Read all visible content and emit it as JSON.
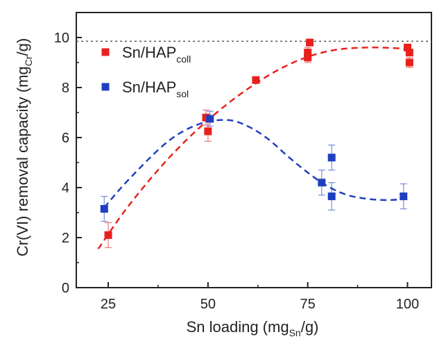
{
  "chart_data": {
    "type": "scatter",
    "xlabel": {
      "main": "Sn loading (mg",
      "sub": "Sn",
      "tail": "/g)"
    },
    "ylabel": {
      "main": "Cr(VI) removal capacity  (mg",
      "sub": "Cr",
      "tail": "/g)"
    },
    "xlim": [
      17,
      106
    ],
    "ylim": [
      0,
      11
    ],
    "xticks": [
      25,
      50,
      75,
      100
    ],
    "yticks": [
      0,
      2,
      4,
      6,
      8,
      10
    ],
    "reference_line": {
      "y": 9.85,
      "style": "dotted",
      "color": "#555555"
    },
    "series": [
      {
        "name": {
          "main": "Sn/HAP",
          "sub": "coll"
        },
        "color": "#e8211e",
        "points": [
          {
            "x": 25,
            "y": 2.1,
            "err": 0.5
          },
          {
            "x": 49.5,
            "y": 6.8,
            "err": 0.3
          },
          {
            "x": 50,
            "y": 6.25,
            "err": 0.4
          },
          {
            "x": 62,
            "y": 8.3,
            "err": 0.0
          },
          {
            "x": 75,
            "y": 9.2,
            "err": 0.2
          },
          {
            "x": 75,
            "y": 9.4,
            "err": 0.2
          },
          {
            "x": 75.5,
            "y": 9.8,
            "err": 0.0
          },
          {
            "x": 100,
            "y": 9.6,
            "err": 0.0
          },
          {
            "x": 100.5,
            "y": 9.4,
            "err": 0.0
          },
          {
            "x": 100.5,
            "y": 9.0,
            "err": 0.2
          }
        ],
        "fit": [
          [
            22.5,
            1.55
          ],
          [
            30,
            3.25
          ],
          [
            40,
            5.15
          ],
          [
            50,
            6.7
          ],
          [
            60,
            7.95
          ],
          [
            70,
            8.9
          ],
          [
            80,
            9.45
          ],
          [
            90,
            9.6
          ],
          [
            100,
            9.55
          ]
        ]
      },
      {
        "name": {
          "main": "Sn/HAP",
          "sub": "sol"
        },
        "color": "#1f3fbf",
        "points": [
          {
            "x": 24,
            "y": 3.15,
            "err": 0.5
          },
          {
            "x": 50.5,
            "y": 6.75,
            "err": 0.3
          },
          {
            "x": 78.5,
            "y": 4.2,
            "err": 0.5
          },
          {
            "x": 81,
            "y": 3.65,
            "err": 0.55
          },
          {
            "x": 81,
            "y": 5.2,
            "err": 0.5
          },
          {
            "x": 99,
            "y": 3.65,
            "err": 0.5
          }
        ],
        "fit": [
          [
            24,
            3.2
          ],
          [
            30,
            4.3
          ],
          [
            40,
            5.85
          ],
          [
            48,
            6.55
          ],
          [
            55,
            6.7
          ],
          [
            60,
            6.45
          ],
          [
            65,
            5.95
          ],
          [
            70,
            5.25
          ],
          [
            75,
            4.6
          ],
          [
            80,
            4.05
          ],
          [
            85,
            3.7
          ],
          [
            90,
            3.55
          ],
          [
            95,
            3.5
          ],
          [
            100,
            3.55
          ]
        ]
      }
    ],
    "legend": "top-left"
  }
}
